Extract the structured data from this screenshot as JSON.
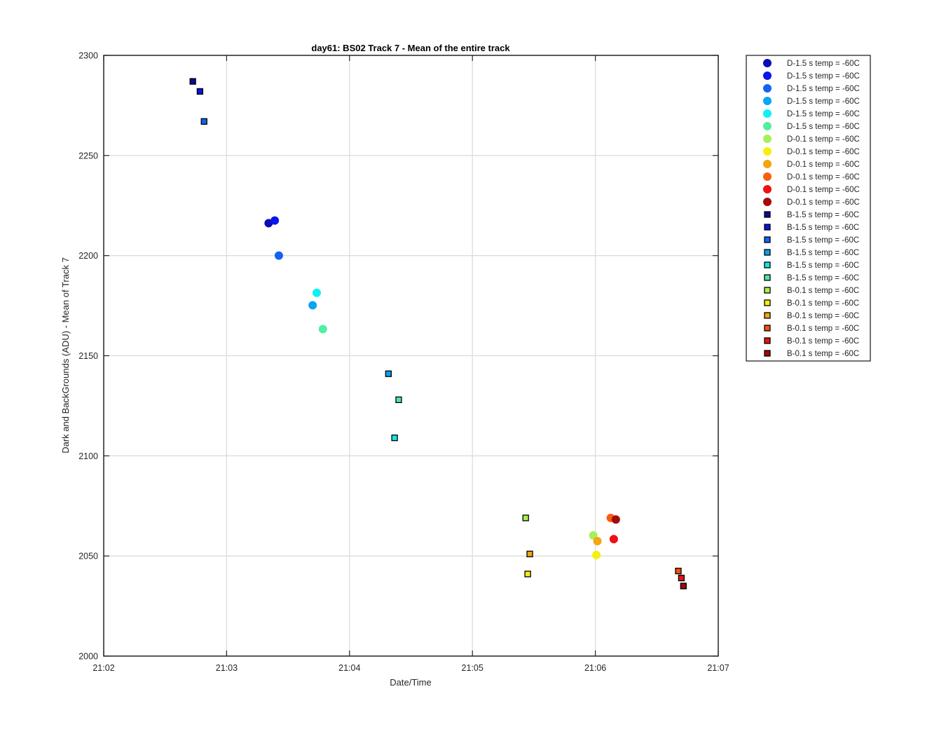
{
  "chart_data": {
    "type": "scatter",
    "title": "day61: BS02  Track 7 - Mean of the entire track",
    "xlabel": "Date/Time",
    "ylabel": "Dark and BackGrounds (ADU) - Mean of Track 7",
    "x_range": [
      "21:02",
      "21:07"
    ],
    "x_ticks": [
      "21:02",
      "21:03",
      "21:04",
      "21:05",
      "21:06",
      "21:07"
    ],
    "ylim": [
      2000,
      2300
    ],
    "y_ticks": [
      2000,
      2050,
      2100,
      2150,
      2200,
      2250,
      2300
    ],
    "grid": true,
    "legend_position": "outside-right",
    "series": [
      {
        "name": "D-1.5 s temp = -60C",
        "marker": "circle",
        "color": "#0a0fb4",
        "points": [
          {
            "t": "21:03:20.5",
            "y": 2216.2
          }
        ]
      },
      {
        "name": "D-1.5 s temp = -60C",
        "marker": "circle",
        "color": "#0a14f0",
        "points": [
          {
            "t": "21:03:23.5",
            "y": 2217.5
          }
        ]
      },
      {
        "name": "D-1.5 s temp = -60C",
        "marker": "circle",
        "color": "#1463f0",
        "points": [
          {
            "t": "21:03:25.5",
            "y": 2200.0
          }
        ]
      },
      {
        "name": "D-1.5 s temp = -60C",
        "marker": "circle",
        "color": "#0aa5f0",
        "points": [
          {
            "t": "21:03:42",
            "y": 2175.2
          }
        ]
      },
      {
        "name": "D-1.5 s temp = -60C",
        "marker": "circle",
        "color": "#0ff0f5",
        "points": [
          {
            "t": "21:03:44",
            "y": 2181.4
          }
        ]
      },
      {
        "name": "D-1.5 s temp = -60C",
        "marker": "circle",
        "color": "#4ff0a0",
        "points": [
          {
            "t": "21:03:47",
            "y": 2163.3
          }
        ]
      },
      {
        "name": "D-0.1 s temp = -60C",
        "marker": "circle",
        "color": "#a5f05a",
        "points": [
          {
            "t": "21:05:59",
            "y": 2060.3
          }
        ]
      },
      {
        "name": "D-0.1 s temp = -60C",
        "marker": "circle",
        "color": "#f5f00a",
        "points": [
          {
            "t": "21:06:00.5",
            "y": 2050.5
          }
        ]
      },
      {
        "name": "D-0.1 s temp = -60C",
        "marker": "circle",
        "color": "#f5a50f",
        "points": [
          {
            "t": "21:06:01",
            "y": 2057.4
          }
        ]
      },
      {
        "name": "D-0.1 s temp = -60C",
        "marker": "circle",
        "color": "#f55f0f",
        "points": [
          {
            "t": "21:06:07.5",
            "y": 2069.0
          }
        ]
      },
      {
        "name": "D-0.1 s temp = -60C",
        "marker": "circle",
        "color": "#f01010",
        "points": [
          {
            "t": "21:06:09",
            "y": 2058.4
          }
        ]
      },
      {
        "name": "D-0.1 s temp = -60C",
        "marker": "circle",
        "color": "#a50a0a",
        "points": [
          {
            "t": "21:06:10",
            "y": 2068.2
          }
        ]
      },
      {
        "name": "B-1.5 s temp = -60C",
        "marker": "square",
        "color": "#0a0a96",
        "points": [
          {
            "t": "21:02:43.5",
            "y": 2287.0
          }
        ]
      },
      {
        "name": "B-1.5 s temp = -60C",
        "marker": "square",
        "color": "#0a14dc",
        "points": [
          {
            "t": "21:02:47",
            "y": 2282.0
          }
        ]
      },
      {
        "name": "B-1.5 s temp = -60C",
        "marker": "square",
        "color": "#1463f0",
        "points": [
          {
            "t": "21:02:49",
            "y": 2267.0
          }
        ]
      },
      {
        "name": "B-1.5 s temp = -60C",
        "marker": "square",
        "color": "#0aa0eb",
        "points": [
          {
            "t": "21:04:19",
            "y": 2141.0
          }
        ]
      },
      {
        "name": "B-1.5 s temp = -60C",
        "marker": "square",
        "color": "#14e6e6",
        "points": [
          {
            "t": "21:04:22",
            "y": 2109.0
          }
        ]
      },
      {
        "name": "B-1.5 s temp = -60C",
        "marker": "square",
        "color": "#50e6a0",
        "points": [
          {
            "t": "21:04:24",
            "y": 2128.0
          }
        ]
      },
      {
        "name": "B-0.1 s temp = -60C",
        "marker": "square",
        "color": "#aaf050",
        "points": [
          {
            "t": "21:05:26",
            "y": 2069.0
          }
        ]
      },
      {
        "name": "B-0.1 s temp = -60C",
        "marker": "square",
        "color": "#f0f014",
        "points": [
          {
            "t": "21:05:27",
            "y": 2041.0
          }
        ]
      },
      {
        "name": "B-0.1 s temp = -60C",
        "marker": "square",
        "color": "#f0a514",
        "points": [
          {
            "t": "21:05:28",
            "y": 2051.0
          }
        ]
      },
      {
        "name": "B-0.1 s temp = -60C",
        "marker": "square",
        "color": "#f05014",
        "points": [
          {
            "t": "21:06:40.5",
            "y": 2042.5
          }
        ]
      },
      {
        "name": "B-0.1 s temp = -60C",
        "marker": "square",
        "color": "#e61414",
        "points": [
          {
            "t": "21:06:42",
            "y": 2039.0
          }
        ]
      },
      {
        "name": "B-0.1 s temp = -60C",
        "marker": "square",
        "color": "#a00a0a",
        "points": [
          {
            "t": "21:06:43",
            "y": 2035.0
          }
        ]
      }
    ]
  }
}
